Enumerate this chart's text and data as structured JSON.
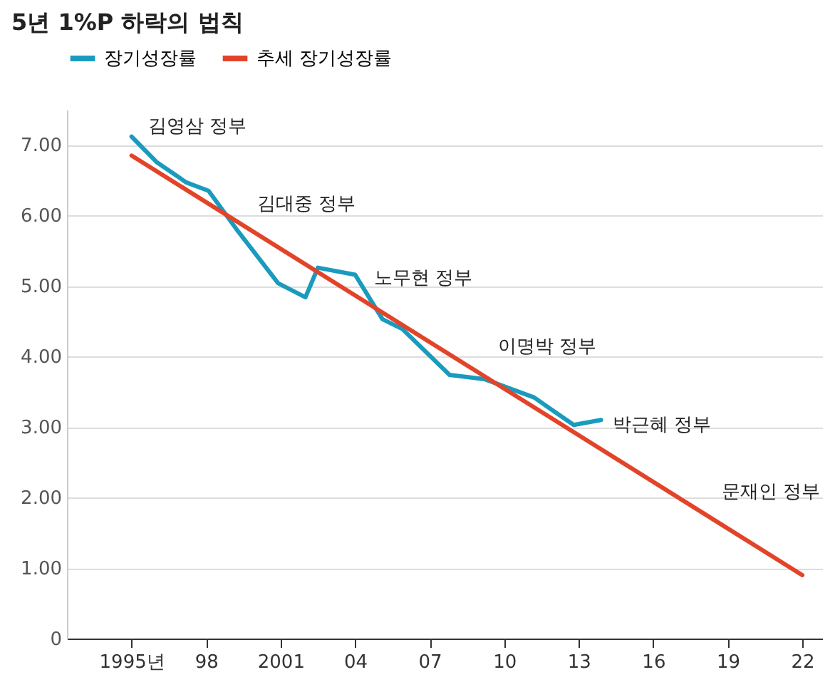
{
  "chart_data": {
    "type": "line",
    "title": "5년 1%P 하락의 법칙",
    "series": [
      {
        "name": "장기성장률",
        "color": "#1a9bbd",
        "x": [
          1995,
          1996,
          1997.2,
          1998.1,
          1999.3,
          2000.9,
          2002,
          2002.5,
          2004,
          2005.1,
          2005.9,
          2007.8,
          2009.2,
          2011.2,
          2012.8,
          2013.9
        ],
        "values": [
          7.12,
          6.76,
          6.47,
          6.35,
          5.77,
          5.04,
          4.84,
          5.26,
          5.16,
          4.53,
          4.39,
          3.74,
          3.68,
          3.42,
          3.03,
          3.1
        ]
      },
      {
        "name": "추세 장기성장률",
        "color": "#e2442a",
        "x": [
          1995,
          2022
        ],
        "values": [
          6.85,
          0.9
        ]
      }
    ],
    "annotations": [
      {
        "text": "김영삼 정부",
        "x": 1996,
        "y": 6.8
      },
      {
        "text": "김대중 정부",
        "x": 2000.4,
        "y": 5.7
      },
      {
        "text": "노무현 정부",
        "x": 2005.1,
        "y": 4.65
      },
      {
        "text": "이명박 정부",
        "x": 2010.1,
        "y": 3.68
      },
      {
        "text": "박근혜 정부",
        "x": 2014.7,
        "y": 2.57
      },
      {
        "text": "문재인 정부",
        "x": 2019.1,
        "y": 1.62
      }
    ],
    "xlim": [
      1992.4,
      2022.8
    ],
    "xticks": [
      {
        "value": 1995,
        "label": "1995년"
      },
      {
        "value": 1998,
        "label": "98"
      },
      2001,
      {
        "value": 2004,
        "label": "04"
      },
      {
        "value": 2007,
        "label": "07"
      },
      {
        "value": 2010,
        "label": "10"
      },
      {
        "value": 2013,
        "label": "13"
      },
      {
        "value": 2016,
        "label": "16"
      },
      {
        "value": 2019,
        "label": "19"
      },
      {
        "value": 2022,
        "label": "22"
      }
    ],
    "ylim": [
      0,
      7.5
    ],
    "yticks": [
      0,
      {
        "value": 1,
        "label": "1.00"
      },
      {
        "value": 2,
        "label": "2.00"
      },
      {
        "value": 3,
        "label": "3.00"
      },
      {
        "value": 4,
        "label": "4.00"
      },
      {
        "value": 5,
        "label": "5.00"
      },
      {
        "value": 6,
        "label": "6.00"
      },
      {
        "value": 7,
        "label": "7.00"
      }
    ],
    "grid": "y",
    "legend": "top left",
    "line_style": "solid",
    "marker": "none"
  }
}
